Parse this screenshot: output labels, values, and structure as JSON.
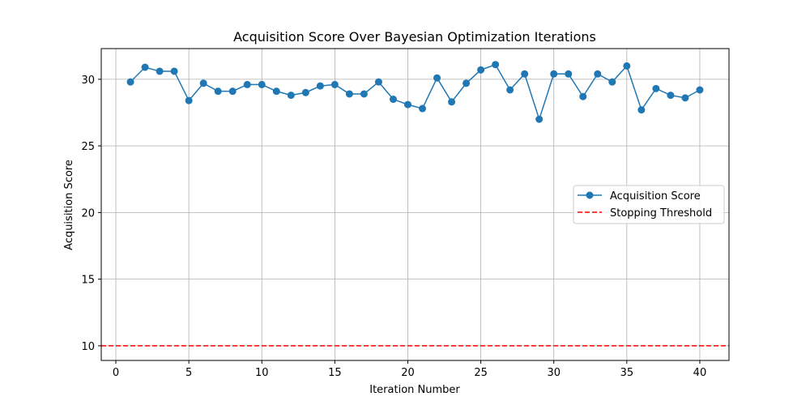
{
  "chart_data": {
    "type": "line",
    "title": "Acquisition Score Over Bayesian Optimization Iterations",
    "xlabel": "Iteration Number",
    "ylabel": "Acquisition Score",
    "xlim": [
      -1,
      42
    ],
    "ylim": [
      8.9,
      32.3
    ],
    "xticks": [
      0,
      5,
      10,
      15,
      20,
      25,
      30,
      35,
      40
    ],
    "yticks": [
      10,
      15,
      20,
      25,
      30
    ],
    "grid": true,
    "legend_position": "center-right",
    "series": [
      {
        "name": "Acquisition Score",
        "color": "#1f77b4",
        "marker": "circle",
        "x": [
          1,
          2,
          3,
          4,
          5,
          6,
          7,
          8,
          9,
          10,
          11,
          12,
          13,
          14,
          15,
          16,
          17,
          18,
          19,
          20,
          21,
          22,
          23,
          24,
          25,
          26,
          27,
          28,
          29,
          30,
          31,
          32,
          33,
          34,
          35,
          36,
          37,
          38,
          39,
          40
        ],
        "y": [
          29.8,
          30.9,
          30.6,
          30.6,
          28.4,
          29.7,
          29.1,
          29.1,
          29.6,
          29.6,
          29.1,
          28.8,
          29.0,
          29.5,
          29.6,
          28.9,
          28.9,
          29.8,
          28.5,
          28.1,
          27.8,
          30.1,
          28.3,
          29.7,
          30.7,
          31.1,
          29.2,
          30.4,
          27.0,
          30.4,
          30.4,
          28.7,
          30.4,
          29.8,
          31.0,
          27.7,
          29.3,
          28.8,
          28.6,
          29.2
        ]
      }
    ],
    "threshold": {
      "name": "Stopping Threshold",
      "value": 10,
      "color": "#ff0000",
      "style": "dashed"
    }
  }
}
